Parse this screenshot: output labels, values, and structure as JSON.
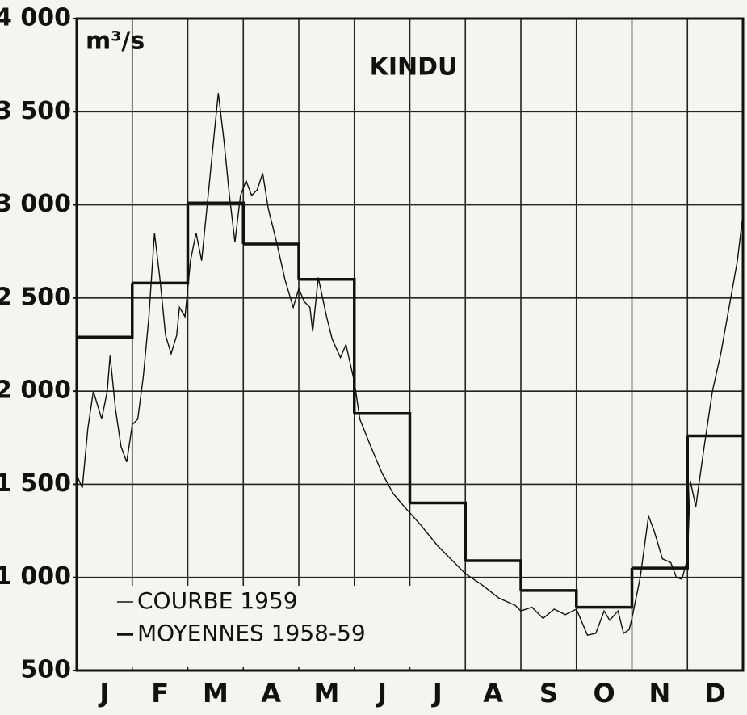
{
  "chart_data": {
    "type": "line",
    "title": "KINDU",
    "y_label": "m³/s",
    "categories": [
      "J",
      "F",
      "M",
      "A",
      "M",
      "J",
      "J",
      "A",
      "S",
      "O",
      "N",
      "D"
    ],
    "xlim": [
      0,
      12
    ],
    "ylim": [
      500,
      4000
    ],
    "yticks": [
      {
        "value": 4000,
        "label": "4 000"
      },
      {
        "value": 3500,
        "label": "3 500"
      },
      {
        "value": 3000,
        "label": "3 000"
      },
      {
        "value": 2500,
        "label": "2 500"
      },
      {
        "value": 2000,
        "label": "2 000"
      },
      {
        "value": 1500,
        "label": "1 500"
      },
      {
        "value": 1000,
        "label": "1 000"
      },
      500
    ],
    "grid": true,
    "legend": "lower left",
    "series": [
      {
        "name": "COURBE 1959",
        "color": "#111111",
        "style": "curve",
        "x": [
          0.0,
          0.1,
          0.2,
          0.3,
          0.45,
          0.55,
          0.6,
          0.7,
          0.8,
          0.9,
          1.0,
          1.1,
          1.2,
          1.3,
          1.4,
          1.5,
          1.6,
          1.7,
          1.8,
          1.85,
          1.95,
          2.05,
          2.15,
          2.25,
          2.35,
          2.45,
          2.55,
          2.65,
          2.75,
          2.85,
          2.95,
          3.05,
          3.15,
          3.25,
          3.35,
          3.45,
          3.6,
          3.75,
          3.9,
          4.0,
          4.1,
          4.2,
          4.25,
          4.35,
          4.5,
          4.6,
          4.75,
          4.85,
          5.0,
          5.1,
          5.3,
          5.5,
          5.7,
          5.9,
          6.2,
          6.5,
          6.8,
          7.0,
          7.3,
          7.6,
          7.9,
          8.0,
          8.2,
          8.4,
          8.6,
          8.8,
          9.0,
          9.1,
          9.2,
          9.35,
          9.5,
          9.6,
          9.75,
          9.85,
          9.95,
          10.0,
          10.15,
          10.3,
          10.4,
          10.55,
          10.7,
          10.8,
          10.9,
          11.0,
          11.05,
          11.15,
          11.3,
          11.45,
          11.6,
          11.75,
          11.9,
          12.0
        ],
        "values": [
          1550,
          1480,
          1800,
          2000,
          1850,
          2000,
          2190,
          1900,
          1700,
          1620,
          1820,
          1850,
          2080,
          2400,
          2850,
          2600,
          2300,
          2200,
          2300,
          2450,
          2400,
          2700,
          2850,
          2700,
          3000,
          3300,
          3600,
          3350,
          3050,
          2800,
          3050,
          3130,
          3050,
          3080,
          3170,
          2980,
          2800,
          2600,
          2450,
          2550,
          2480,
          2450,
          2320,
          2610,
          2400,
          2280,
          2180,
          2250,
          2050,
          1850,
          1700,
          1560,
          1450,
          1380,
          1280,
          1170,
          1080,
          1020,
          960,
          890,
          850,
          820,
          840,
          780,
          830,
          800,
          830,
          760,
          690,
          700,
          820,
          770,
          820,
          700,
          720,
          780,
          1000,
          1330,
          1250,
          1100,
          1080,
          1000,
          990,
          1100,
          1520,
          1380,
          1700,
          2000,
          2200,
          2450,
          2700,
          2950
        ]
      },
      {
        "name": "MOYENNES 1958-59",
        "color": "#111111",
        "style": "step",
        "values": [
          2290,
          2580,
          3010,
          2790,
          2600,
          1880,
          1400,
          1090,
          930,
          840,
          1050,
          1760
        ]
      }
    ]
  }
}
